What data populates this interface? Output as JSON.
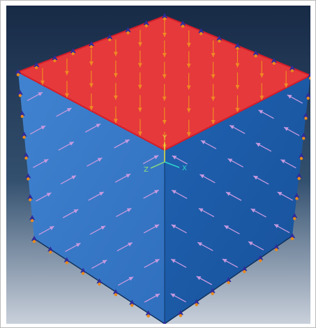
{
  "viewport": {
    "background_top": "#172a46",
    "background_bottom": "#c9d0db"
  },
  "model": {
    "name": "cube",
    "top_face_color": "#e5393b",
    "top_face_edge_color": "#d21d2b",
    "left_face_color": "#3a79c7",
    "right_face_color": "#1e5ca8",
    "pressure_arrow_color": "#f08a24",
    "side_arrow_color": "#c79ae0",
    "bc_marker_color": "#2f2c9a",
    "bc_dot_color": "#e88a1c"
  },
  "triad": {
    "y_label": "Y",
    "x_label": "X",
    "z_label": "Z",
    "y_color": "#e8e23a",
    "x_color": "#2fd6d0",
    "z_color": "#8fe07a"
  }
}
